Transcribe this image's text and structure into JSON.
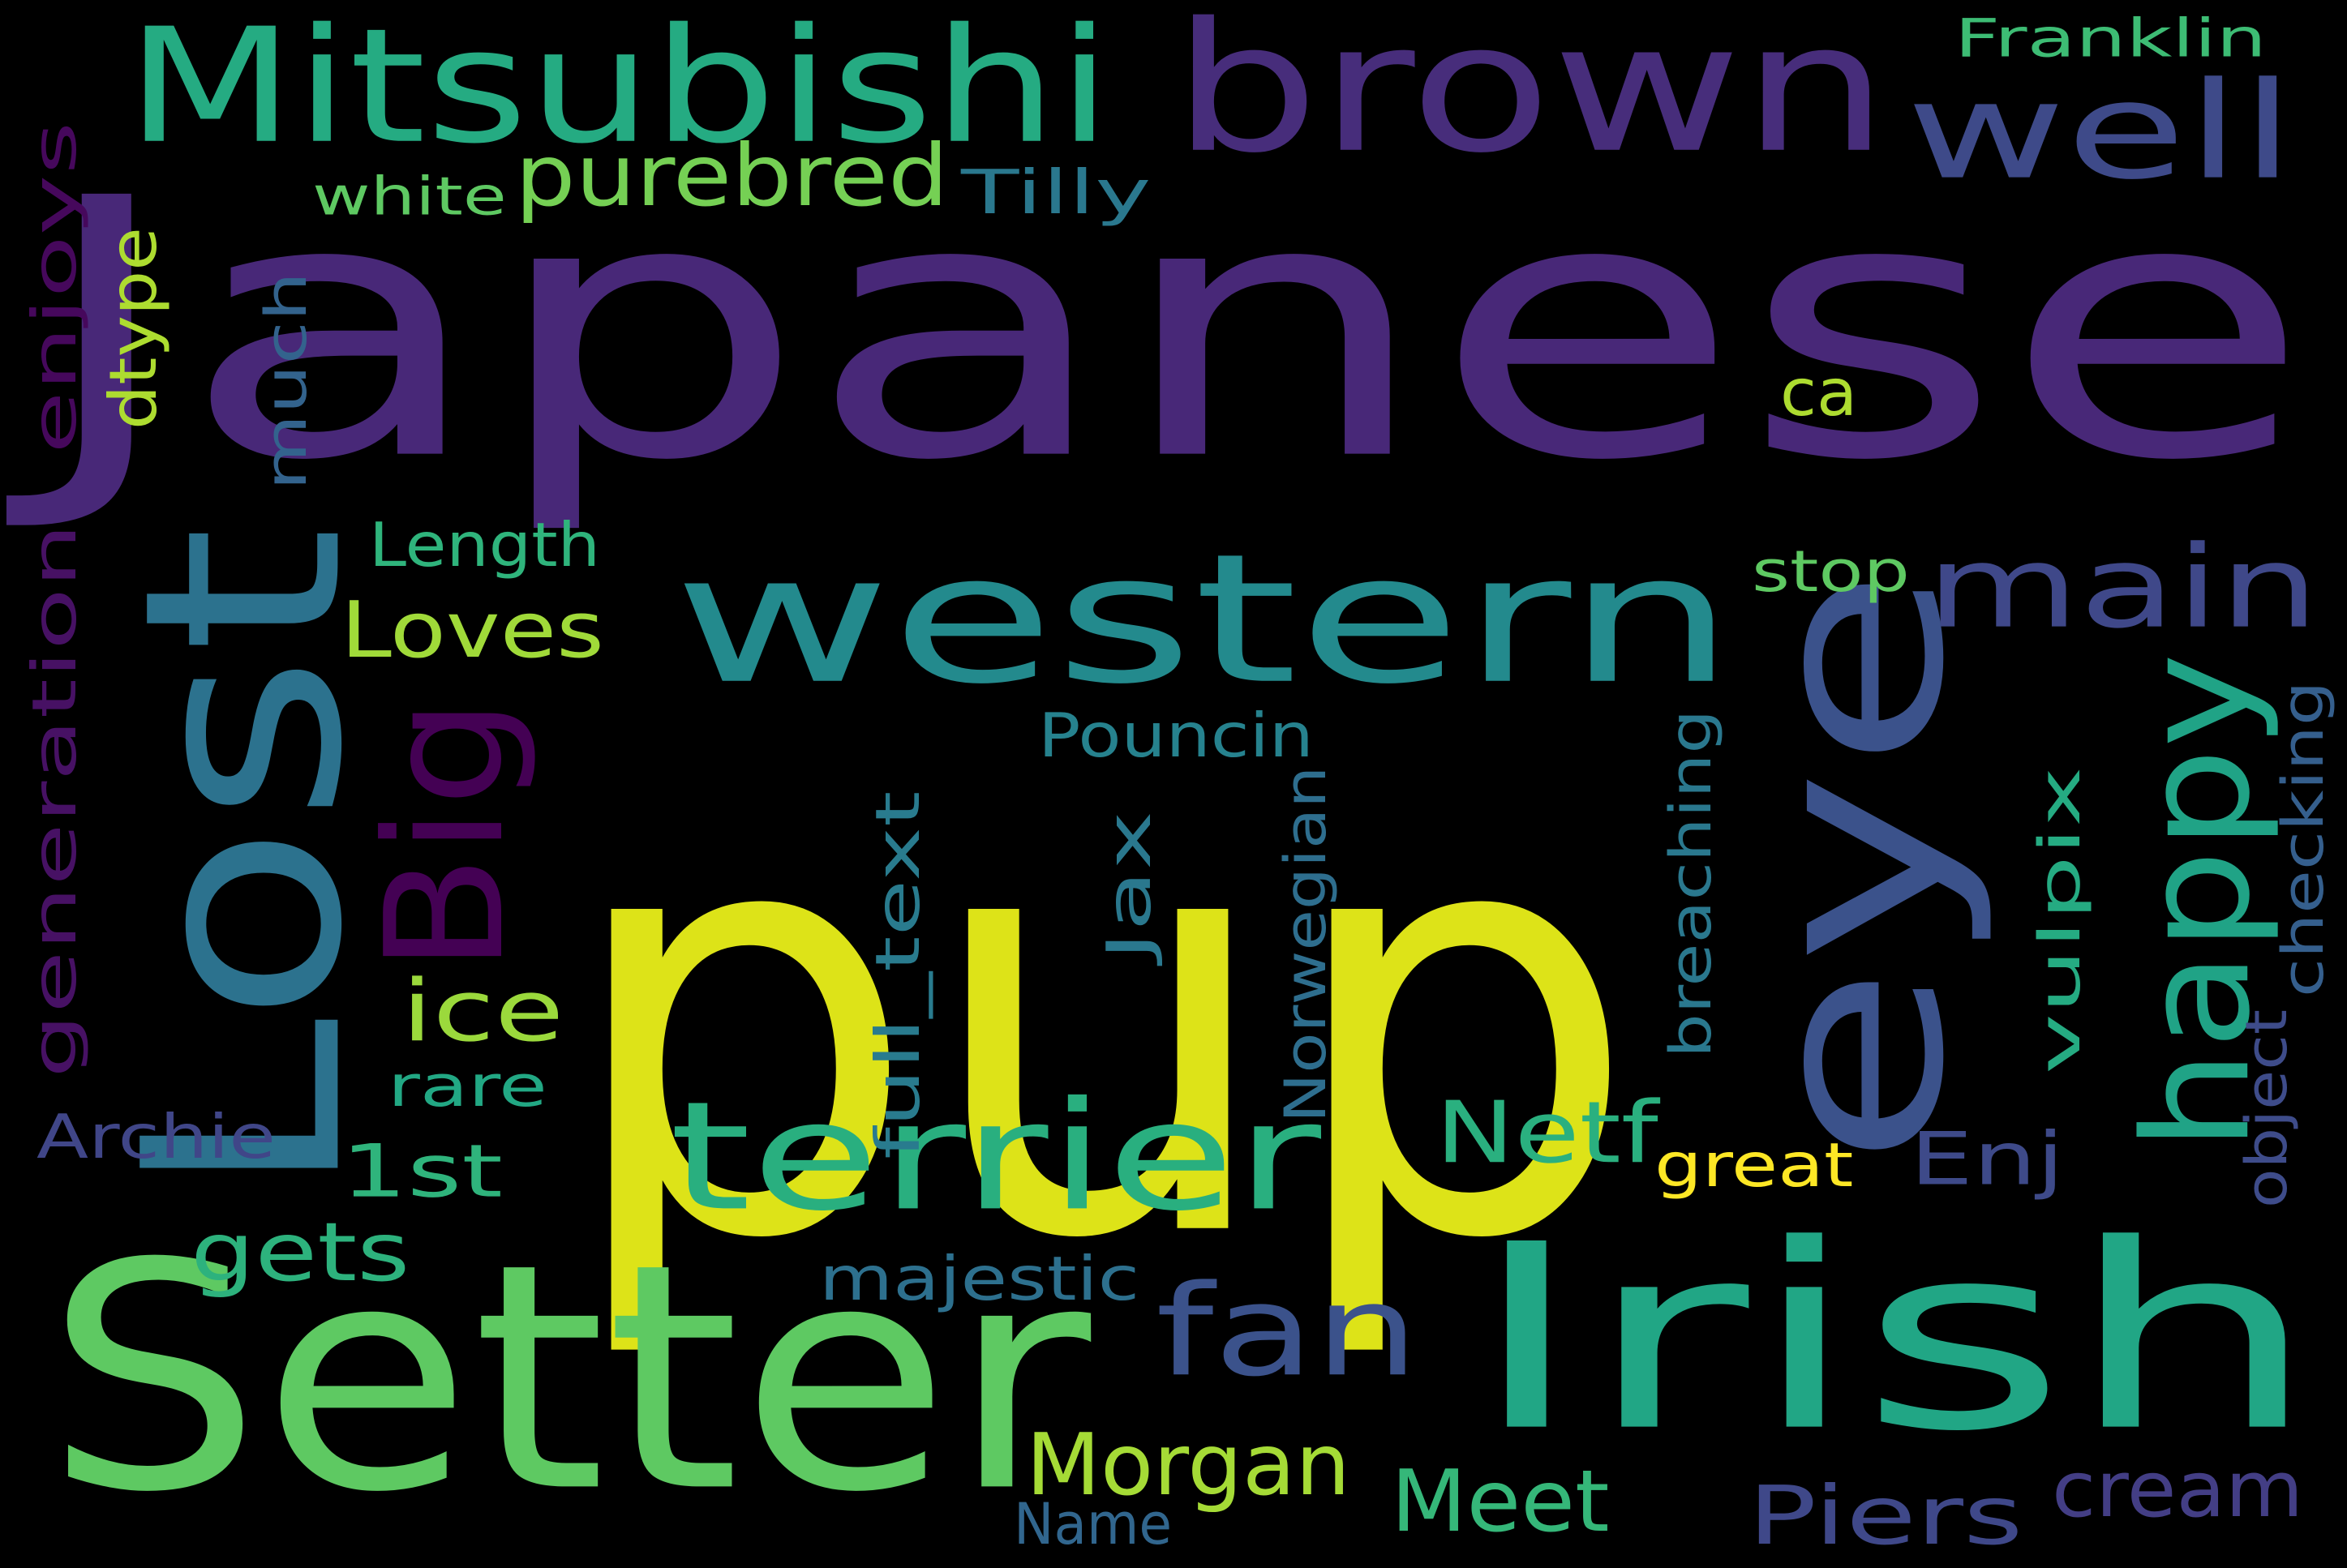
{
  "background_color": "#000000",
  "words": [
    {
      "text": "Japanese",
      "color": "#482878"
    },
    {
      "text": "pup",
      "color": "#dde318"
    },
    {
      "text": "Lost",
      "color": "#2c728e"
    },
    {
      "text": "brown",
      "color": "#472d7b"
    },
    {
      "text": "Mitsubishi",
      "color": "#25ab82"
    },
    {
      "text": "Setter",
      "color": "#5ec962"
    },
    {
      "text": "Irish",
      "color": "#21a685"
    },
    {
      "text": "western",
      "color": "#238a8d"
    },
    {
      "text": "eye",
      "color": "#3b528b"
    },
    {
      "text": "well",
      "color": "#3e4a89"
    },
    {
      "text": "main",
      "color": "#3f4889"
    },
    {
      "text": "happy",
      "color": "#20a386"
    },
    {
      "text": "terrier",
      "color": "#29af7f"
    },
    {
      "text": "fan",
      "color": "#3b528b"
    },
    {
      "text": "Big",
      "color": "#440154"
    },
    {
      "text": "purebred",
      "color": "#75d054"
    },
    {
      "text": "white",
      "color": "#5ec962"
    },
    {
      "text": "Tilly",
      "color": "#2a788e"
    },
    {
      "text": "Franklin",
      "color": "#3dbc74"
    },
    {
      "text": "enjoys",
      "color": "#46085c"
    },
    {
      "text": "dtype",
      "color": "#addc30"
    },
    {
      "text": "much",
      "color": "#33638d"
    },
    {
      "text": "generation",
      "color": "#471164"
    },
    {
      "text": "ca",
      "color": "#addc30"
    },
    {
      "text": "Length",
      "color": "#2fb47c"
    },
    {
      "text": "stop",
      "color": "#5ec962"
    },
    {
      "text": "Loves",
      "color": "#a0da39"
    },
    {
      "text": "Pouncin",
      "color": "#26828e"
    },
    {
      "text": "checking",
      "color": "#355f8d"
    },
    {
      "text": "breaching",
      "color": "#2a788e"
    },
    {
      "text": "vulpix",
      "color": "#25ab82"
    },
    {
      "text": "Jax",
      "color": "#2a788e"
    },
    {
      "text": "ice",
      "color": "#9bd93c"
    },
    {
      "text": "rare",
      "color": "#22a884"
    },
    {
      "text": "full_text",
      "color": "#297b8e"
    },
    {
      "text": "Norwegian",
      "color": "#2e6e8e"
    },
    {
      "text": "object",
      "color": "#3e4c8a"
    },
    {
      "text": "Archie",
      "color": "#404688"
    },
    {
      "text": "1st",
      "color": "#2fb47c"
    },
    {
      "text": "Netf",
      "color": "#2ab07f"
    },
    {
      "text": "great",
      "color": "#fde725"
    },
    {
      "text": "Enj",
      "color": "#3e4a89"
    },
    {
      "text": "gets",
      "color": "#2db27d"
    },
    {
      "text": "majestic",
      "color": "#2d708e"
    },
    {
      "text": "Morgan",
      "color": "#a5db36"
    },
    {
      "text": "Meet",
      "color": "#35b779"
    },
    {
      "text": "Piers",
      "color": "#3f4889"
    },
    {
      "text": "cream",
      "color": "#433e85"
    },
    {
      "text": "Name",
      "color": "#31668e"
    }
  ]
}
